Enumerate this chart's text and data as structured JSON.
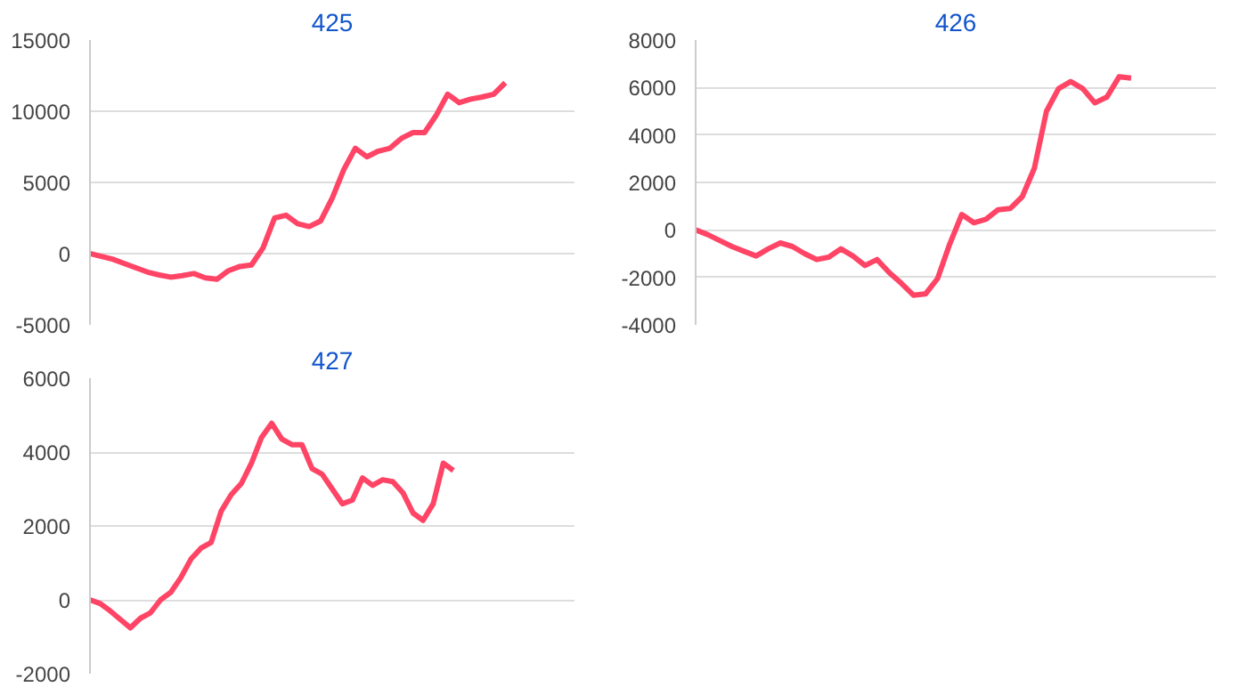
{
  "chart_data": [
    {
      "type": "line",
      "title": "425",
      "categories": [
        null,
        null,
        null,
        null,
        null,
        null,
        null,
        null,
        null,
        null,
        null,
        null,
        null,
        null,
        null,
        null,
        null,
        null,
        null,
        null,
        null,
        null,
        null,
        null,
        null,
        null,
        null,
        null,
        null,
        null,
        null,
        null,
        null,
        null,
        null,
        null,
        null,
        null,
        null,
        null,
        null,
        null,
        null
      ],
      "ylim": [
        -5000,
        15000
      ],
      "yticks": [
        -5000,
        0,
        5000,
        10000,
        15000
      ],
      "grid": "y",
      "tick_labels": "y",
      "series": [
        {
          "color": "#ff4466",
          "values": [
            0,
            -200,
            -400,
            -700,
            -1000,
            -1300,
            -1500,
            -1650,
            -1550,
            -1400,
            -1700,
            -1800,
            -1200,
            -900,
            -800,
            400,
            2500,
            2700,
            2100,
            1900,
            2300,
            3900,
            5900,
            7400,
            6800,
            7200,
            7400,
            8100,
            8500,
            8500,
            9700,
            11200,
            10600,
            10850,
            11000,
            11200,
            12000,
            null,
            null,
            null,
            null,
            null,
            null
          ]
        }
      ]
    },
    {
      "type": "line",
      "title": "426",
      "categories": [
        null,
        null,
        null,
        null,
        null,
        null,
        null,
        null,
        null,
        null,
        null,
        null,
        null,
        null,
        null,
        null,
        null,
        null,
        null,
        null,
        null,
        null,
        null,
        null,
        null,
        null,
        null,
        null,
        null,
        null,
        null,
        null,
        null,
        null,
        null,
        null,
        null,
        null,
        null,
        null,
        null,
        null,
        null,
        null
      ],
      "ylim": [
        -4000,
        8000
      ],
      "yticks": [
        -4000,
        -2000,
        0,
        2000,
        4000,
        6000,
        8000
      ],
      "grid": "y",
      "tick_labels": "y",
      "series": [
        {
          "color": "#ff4466",
          "values": [
            0,
            -200,
            -450,
            -700,
            -900,
            -1100,
            -800,
            -550,
            -700,
            -1000,
            -1250,
            -1150,
            -800,
            -1100,
            -1500,
            -1250,
            -1800,
            -2250,
            -2750,
            -2700,
            -2050,
            -600,
            650,
            300,
            450,
            850,
            900,
            1400,
            2600,
            5000,
            5950,
            6250,
            5950,
            5350,
            5600,
            6450,
            6400,
            null,
            null,
            null,
            null,
            null,
            null,
            null
          ]
        }
      ]
    },
    {
      "type": "line",
      "title": "427",
      "categories": [
        null,
        null,
        null,
        null,
        null,
        null,
        null,
        null,
        null,
        null,
        null,
        null,
        null,
        null,
        null,
        null,
        null,
        null,
        null,
        null,
        null,
        null,
        null,
        null,
        null,
        null,
        null,
        null,
        null,
        null,
        null,
        null,
        null,
        null,
        null,
        null,
        null,
        null,
        null,
        null,
        null,
        null,
        null,
        null,
        null,
        null,
        null,
        null,
        null
      ],
      "ylim": [
        -2000,
        6000
      ],
      "yticks": [
        -2000,
        0,
        2000,
        4000,
        6000
      ],
      "grid": "y",
      "tick_labels": "y",
      "series": [
        {
          "color": "#ff4466",
          "values": [
            0,
            -100,
            -300,
            -530,
            -760,
            -500,
            -350,
            0,
            200,
            600,
            1100,
            1400,
            1550,
            2400,
            2850,
            3150,
            3700,
            4400,
            4780,
            4350,
            4200,
            4200,
            3550,
            3400,
            3000,
            2600,
            2700,
            3300,
            3100,
            3250,
            3200,
            2900,
            2350,
            2150,
            2600,
            3700,
            3500,
            null,
            null,
            null,
            null,
            null,
            null,
            null,
            null,
            null,
            null,
            null,
            null
          ]
        }
      ]
    }
  ]
}
